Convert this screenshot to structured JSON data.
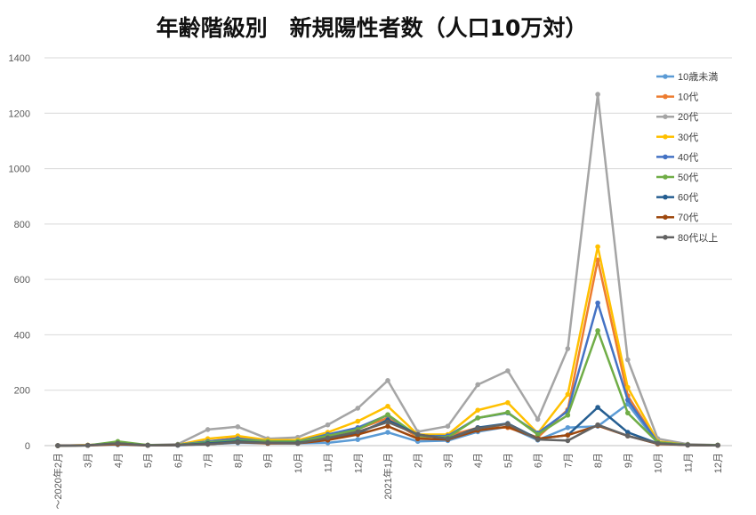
{
  "chart_data": {
    "type": "line",
    "title": "年齢階級別　新規陽性者数（人口10万対）",
    "xlabel": "",
    "ylabel": "",
    "ylim": [
      0,
      1400
    ],
    "yticks": [
      0,
      200,
      400,
      600,
      800,
      1000,
      1200,
      1400
    ],
    "grid": true,
    "legend_position": "right",
    "categories": [
      "～2020年2月",
      "3月",
      "4月",
      "5月",
      "6月",
      "7月",
      "8月",
      "9月",
      "10月",
      "11月",
      "12月",
      "2021年1月",
      "2月",
      "3月",
      "4月",
      "5月",
      "6月",
      "7月",
      "8月",
      "9月",
      "10月",
      "11月",
      "12月"
    ],
    "series": [
      {
        "name": "10歳未満",
        "color": "#5b9bd5",
        "values": [
          0,
          1,
          3,
          1,
          1,
          5,
          10,
          8,
          8,
          10,
          22,
          48,
          15,
          18,
          50,
          68,
          20,
          65,
          70,
          150,
          8,
          2,
          1
        ]
      },
      {
        "name": "10代",
        "color": "#ed7d31",
        "values": [
          0,
          1,
          5,
          1,
          2,
          15,
          28,
          15,
          15,
          38,
          60,
          100,
          30,
          35,
          65,
          65,
          30,
          130,
          670,
          180,
          10,
          2,
          1
        ]
      },
      {
        "name": "20代",
        "color": "#a5a5a5",
        "values": [
          0,
          2,
          10,
          2,
          5,
          58,
          68,
          25,
          30,
          75,
          135,
          235,
          50,
          70,
          220,
          270,
          95,
          350,
          1268,
          310,
          25,
          5,
          2
        ]
      },
      {
        "name": "30代",
        "color": "#ffc000",
        "values": [
          0,
          2,
          8,
          2,
          3,
          25,
          35,
          20,
          20,
          48,
          88,
          142,
          40,
          40,
          128,
          155,
          45,
          185,
          718,
          210,
          15,
          3,
          2
        ]
      },
      {
        "name": "40代",
        "color": "#4472c4",
        "values": [
          0,
          1,
          8,
          2,
          3,
          15,
          25,
          15,
          15,
          40,
          65,
          110,
          35,
          35,
          100,
          118,
          45,
          125,
          515,
          165,
          12,
          3,
          2
        ]
      },
      {
        "name": "50代",
        "color": "#70ad47",
        "values": [
          0,
          1,
          15,
          2,
          3,
          12,
          20,
          15,
          15,
          35,
          58,
          112,
          35,
          30,
          100,
          120,
          40,
          110,
          415,
          118,
          12,
          3,
          2
        ]
      },
      {
        "name": "60代",
        "color": "#255e91",
        "values": [
          0,
          1,
          8,
          1,
          2,
          8,
          15,
          10,
          10,
          25,
          45,
          92,
          40,
          25,
          65,
          80,
          25,
          38,
          138,
          48,
          8,
          2,
          1
        ]
      },
      {
        "name": "70代",
        "color": "#9e480e",
        "values": [
          0,
          1,
          5,
          1,
          2,
          5,
          12,
          8,
          8,
          20,
          40,
          70,
          25,
          22,
          55,
          68,
          25,
          38,
          72,
          35,
          6,
          2,
          1
        ]
      },
      {
        "name": "80代以上",
        "color": "#636363",
        "values": [
          0,
          1,
          8,
          1,
          2,
          5,
          12,
          10,
          8,
          28,
          50,
          85,
          40,
          25,
          62,
          78,
          22,
          18,
          75,
          35,
          8,
          2,
          1
        ]
      }
    ]
  }
}
